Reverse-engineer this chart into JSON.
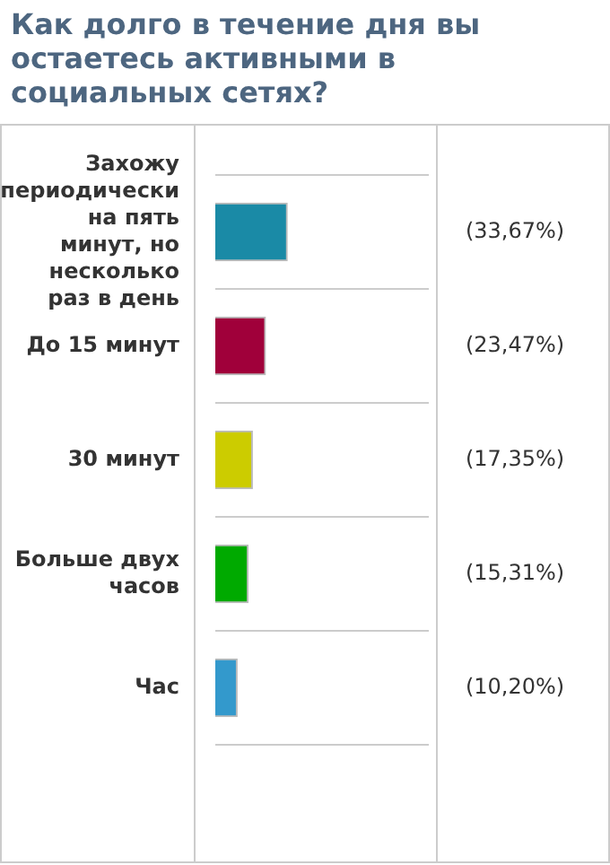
{
  "chart_data": {
    "type": "bar",
    "orientation": "horizontal",
    "title": "Как долго в течение дня вы остаетесь активными в социальных сетях?",
    "categories": [
      "Захожу периодически на пять минут, но несколько раз в день",
      "До 15 минут",
      "30 минут",
      "Больше двух часов",
      "Час"
    ],
    "values": [
      33.67,
      23.47,
      17.35,
      15.31,
      10.2
    ],
    "colors": [
      "#1a8aa6",
      "#a0003a",
      "#cccc00",
      "#00aa00",
      "#3399cc"
    ],
    "value_labels": [
      "(33,67%)",
      "(23,47%)",
      "(17,35%)",
      "(15,31%)",
      "(10,20%)"
    ],
    "xlim": [
      0,
      100
    ],
    "tick_labels": "y",
    "grid": "y",
    "legend": false
  }
}
